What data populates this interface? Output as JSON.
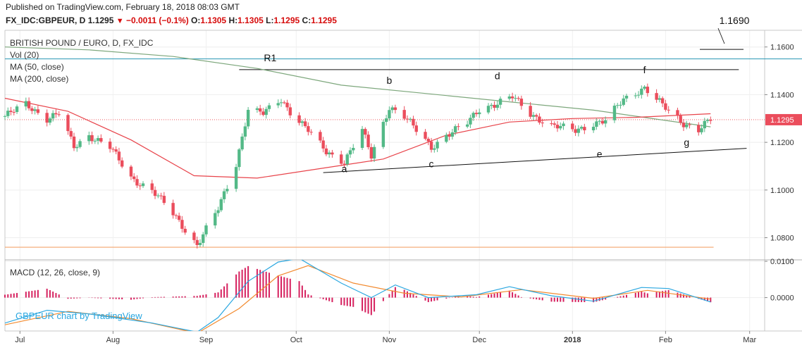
{
  "header": {
    "published": "Published on TradingView.com, February 18, 2018 08:03 GMT",
    "symbol": "FX_IDC:GBPEUR, D",
    "last": "1.1295",
    "change": "−0.0011 (−0.1%)",
    "o_label": "O:",
    "o_value": "1.1305",
    "h_label": "H:",
    "h_value": "1.1305",
    "l_label": "L:",
    "l_value": "1.1295",
    "c_label": "C:",
    "c_value": "1.1295"
  },
  "main_pane": {
    "title": "BRITISH POUND / EURO, D, FX_IDC",
    "indicators": [
      "Vol (20)",
      "MA (50, close)",
      "MA (200, close)"
    ],
    "price_badge": "1.1295",
    "target_label": "1.1690"
  },
  "macd_pane": {
    "title": "MACD (12, 26, close, 9)",
    "ticks": [
      "0.0100",
      "0.0000"
    ]
  },
  "watermark": "GBPEUR chart by TradingView",
  "colors": {
    "up": "#53b987",
    "down": "#eb4d5c",
    "ma50": "#e8434a",
    "ma200": "#7da77c",
    "resistance": "#2496b3",
    "support_low": "#f4a56d",
    "macd_line": "#2aa7e0",
    "signal_line": "#f28a2f",
    "hist": "#d6205e"
  },
  "chart_data": {
    "type": "candlestick",
    "title": "BRITISH POUND / EURO, D, FX_IDC",
    "y_ticks": [
      "1.1600",
      "1.1400",
      "1.1200",
      "1.1000",
      "1.0800"
    ],
    "ylim": [
      1.071,
      1.167
    ],
    "x_ticks": [
      "Jul",
      "Aug",
      "Sep",
      "Oct",
      "Nov",
      "Dec",
      "2018",
      "Feb",
      "Mar"
    ],
    "x_range": [
      "2017-06-26",
      "2018-03-06"
    ],
    "annotations": [
      {
        "label": "R1",
        "type": "horizontal",
        "y": 1.1505,
        "from": "2017-09-12",
        "to": "2018-02-16"
      },
      {
        "label": "resistance",
        "type": "horizontal",
        "y": 1.155
      },
      {
        "label": "low",
        "type": "horizontal",
        "y": 1.076
      },
      {
        "label": "support",
        "type": "trendline",
        "from": [
          "2017-10-10",
          1.1073
        ],
        "to": [
          "2018-02-28",
          1.1175
        ]
      },
      {
        "label": "a",
        "date": "2017-10-17",
        "y": 1.1075
      },
      {
        "label": "b",
        "date": "2017-11-01",
        "y": 1.1445
      },
      {
        "label": "c",
        "date": "2017-11-15",
        "y": 1.1095
      },
      {
        "label": "d",
        "date": "2017-12-07",
        "y": 1.1465
      },
      {
        "label": "e",
        "date": "2018-01-10",
        "y": 1.1137
      },
      {
        "label": "f",
        "date": "2018-01-25",
        "y": 1.149
      },
      {
        "label": "g",
        "date": "2018-02-08",
        "y": 1.1185
      },
      {
        "label": "1.1690",
        "type": "target",
        "y": 1.159
      }
    ],
    "anchors": [
      [
        "2017-06-26",
        1.131
      ],
      [
        "2017-07-03",
        1.136
      ],
      [
        "2017-07-10",
        1.13
      ],
      [
        "2017-07-14",
        1.132
      ],
      [
        "2017-07-19",
        1.118
      ],
      [
        "2017-07-24",
        1.123
      ],
      [
        "2017-07-31",
        1.118
      ],
      [
        "2017-08-07",
        1.105
      ],
      [
        "2017-08-14",
        1.1
      ],
      [
        "2017-08-21",
        1.09
      ],
      [
        "2017-08-29",
        1.077
      ],
      [
        "2017-09-05",
        1.092
      ],
      [
        "2017-09-11",
        1.111
      ],
      [
        "2017-09-15",
        1.134
      ],
      [
        "2017-09-20",
        1.132
      ],
      [
        "2017-09-26",
        1.138
      ],
      [
        "2017-09-29",
        1.133
      ],
      [
        "2017-10-05",
        1.125
      ],
      [
        "2017-10-11",
        1.116
      ],
      [
        "2017-10-17",
        1.112
      ],
      [
        "2017-10-23",
        1.125
      ],
      [
        "2017-10-26",
        1.114
      ],
      [
        "2017-11-01",
        1.135
      ],
      [
        "2017-11-06",
        1.131
      ],
      [
        "2017-11-10",
        1.125
      ],
      [
        "2017-11-15",
        1.118
      ],
      [
        "2017-11-20",
        1.123
      ],
      [
        "2017-11-27",
        1.128
      ],
      [
        "2017-12-01",
        1.134
      ],
      [
        "2017-12-06",
        1.136
      ],
      [
        "2017-12-12",
        1.139
      ],
      [
        "2017-12-18",
        1.132
      ],
      [
        "2017-12-25",
        1.127
      ],
      [
        "2018-01-02",
        1.125
      ],
      [
        "2018-01-08",
        1.128
      ],
      [
        "2018-01-12",
        1.129
      ],
      [
        "2018-01-18",
        1.138
      ],
      [
        "2018-01-25",
        1.143
      ],
      [
        "2018-01-29",
        1.138
      ],
      [
        "2018-02-02",
        1.133
      ],
      [
        "2018-02-07",
        1.128
      ],
      [
        "2018-02-12",
        1.1255
      ],
      [
        "2018-02-16",
        1.1295
      ]
    ],
    "ma50": [
      [
        "2017-06-26",
        1.1385
      ],
      [
        "2017-07-17",
        1.133
      ],
      [
        "2017-08-07",
        1.121
      ],
      [
        "2017-08-28",
        1.106
      ],
      [
        "2017-09-18",
        1.105
      ],
      [
        "2017-10-09",
        1.109
      ],
      [
        "2017-10-30",
        1.113
      ],
      [
        "2017-11-20",
        1.123
      ],
      [
        "2017-12-11",
        1.1285
      ],
      [
        "2018-01-01",
        1.13
      ],
      [
        "2018-01-22",
        1.1305
      ],
      [
        "2018-02-16",
        1.132
      ]
    ],
    "ma200": [
      [
        "2017-06-26",
        1.16
      ],
      [
        "2017-07-24",
        1.1588
      ],
      [
        "2017-08-21",
        1.156
      ],
      [
        "2017-09-18",
        1.151
      ],
      [
        "2017-10-16",
        1.144
      ],
      [
        "2017-11-13",
        1.1405
      ],
      [
        "2017-12-11",
        1.137
      ],
      [
        "2018-01-08",
        1.1335
      ],
      [
        "2018-02-16",
        1.1265
      ]
    ],
    "macd_ylim": [
      -0.0092,
      0.0104
    ],
    "macd_line": [
      [
        "2017-06-26",
        -0.007
      ],
      [
        "2017-07-10",
        -0.0035
      ],
      [
        "2017-07-24",
        -0.0045
      ],
      [
        "2017-08-14",
        -0.007
      ],
      [
        "2017-08-29",
        -0.0095
      ],
      [
        "2017-09-05",
        -0.0055
      ],
      [
        "2017-09-15",
        0.0045
      ],
      [
        "2017-09-25",
        0.0098
      ],
      [
        "2017-10-02",
        0.0108
      ],
      [
        "2017-10-16",
        0.004
      ],
      [
        "2017-10-26",
        0.0
      ],
      [
        "2017-11-03",
        0.0035
      ],
      [
        "2017-11-14",
        0.0
      ],
      [
        "2017-11-30",
        0.0008
      ],
      [
        "2017-12-11",
        0.003
      ],
      [
        "2017-12-25",
        0.0005
      ],
      [
        "2018-01-08",
        -0.001
      ],
      [
        "2018-01-24",
        0.0028
      ],
      [
        "2018-02-02",
        0.0025
      ],
      [
        "2018-02-16",
        -0.0012
      ]
    ],
    "signal_line": [
      [
        "2017-06-26",
        -0.0075
      ],
      [
        "2017-07-17",
        -0.0038
      ],
      [
        "2017-08-07",
        -0.0058
      ],
      [
        "2017-08-29",
        -0.0098
      ],
      [
        "2017-09-12",
        -0.003
      ],
      [
        "2017-09-25",
        0.006
      ],
      [
        "2017-10-05",
        0.0088
      ],
      [
        "2017-10-20",
        0.004
      ],
      [
        "2017-11-06",
        0.0012
      ],
      [
        "2017-11-25",
        0.0002
      ],
      [
        "2017-12-15",
        0.0022
      ],
      [
        "2018-01-08",
        -0.0002
      ],
      [
        "2018-01-26",
        0.002
      ],
      [
        "2018-02-16",
        -0.0004
      ]
    ]
  }
}
